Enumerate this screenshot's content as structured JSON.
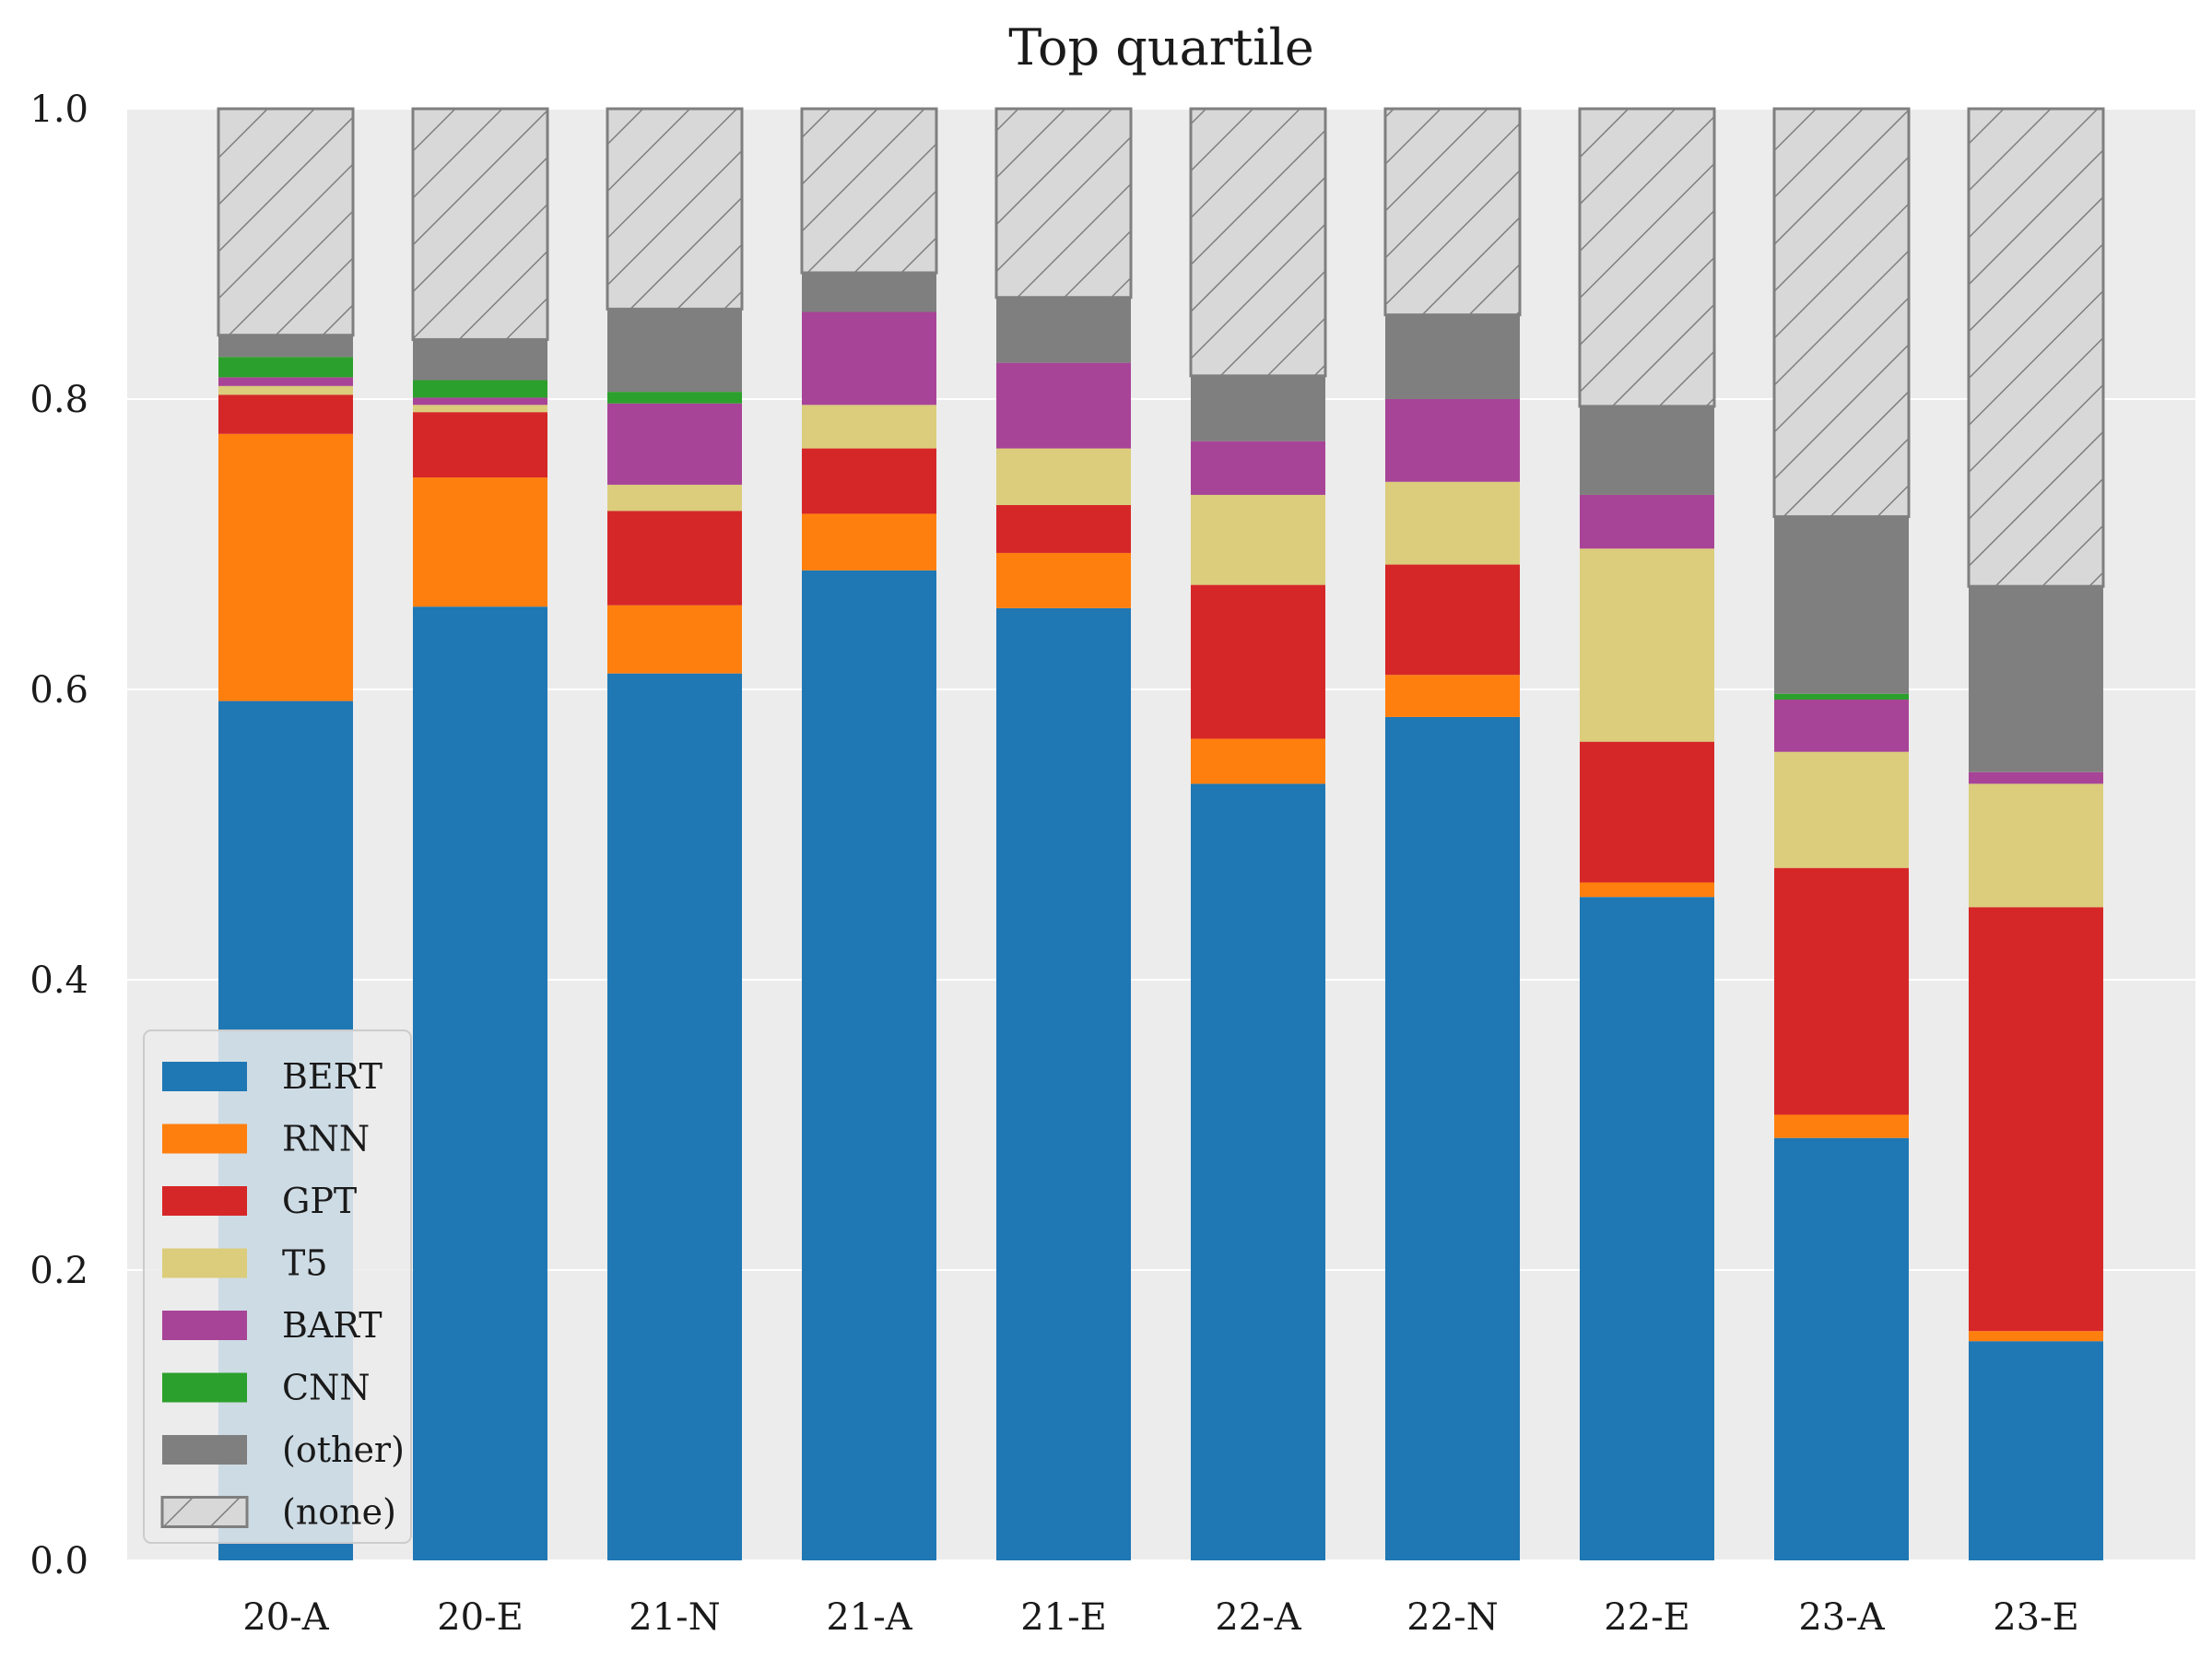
{
  "chart_data": {
    "type": "bar",
    "stacked": true,
    "title": "Top quartile",
    "xlabel": "",
    "ylabel": "",
    "ylim": [
      0,
      1.0
    ],
    "yticks": [
      "0.0",
      "0.2",
      "0.4",
      "0.6",
      "0.8",
      "1.0"
    ],
    "grid": true,
    "legend_position": "bottom-left",
    "categories": [
      "20-A",
      "20-E",
      "21-N",
      "21-A",
      "21-E",
      "22-A",
      "22-N",
      "22-E",
      "23-A",
      "23-E"
    ],
    "series": [
      {
        "name": "BERT",
        "color": "#1f77b4",
        "values": [
          0.592,
          0.657,
          0.611,
          0.682,
          0.656,
          0.535,
          0.581,
          0.457,
          0.291,
          0.151
        ]
      },
      {
        "name": "RNN",
        "color": "#ff7f0e",
        "values": [
          0.184,
          0.089,
          0.047,
          0.039,
          0.038,
          0.031,
          0.029,
          0.01,
          0.016,
          0.007
        ]
      },
      {
        "name": "GPT",
        "color": "#d62728",
        "values": [
          0.027,
          0.045,
          0.065,
          0.045,
          0.033,
          0.106,
          0.076,
          0.097,
          0.17,
          0.292
        ]
      },
      {
        "name": "T5",
        "color": "#dbcd7b",
        "values": [
          0.006,
          0.005,
          0.018,
          0.03,
          0.039,
          0.062,
          0.057,
          0.133,
          0.08,
          0.085
        ]
      },
      {
        "name": "BART",
        "color": "#a84497",
        "values": [
          0.006,
          0.005,
          0.056,
          0.064,
          0.059,
          0.037,
          0.057,
          0.037,
          0.036,
          0.008
        ]
      },
      {
        "name": "CNN",
        "color": "#2ca02c",
        "values": [
          0.014,
          0.012,
          0.008,
          0.0,
          0.0,
          0.0,
          0.0,
          0.0,
          0.004,
          0.0
        ]
      },
      {
        "name": "(other)",
        "color": "#7f7f7f",
        "values": [
          0.015,
          0.028,
          0.057,
          0.027,
          0.045,
          0.045,
          0.058,
          0.061,
          0.122,
          0.128
        ]
      },
      {
        "name": "(none)",
        "color": "#d8d8d8",
        "hatch": true,
        "values": [
          0.156,
          0.159,
          0.138,
          0.113,
          0.13,
          0.184,
          0.142,
          0.205,
          0.281,
          0.329
        ]
      }
    ]
  }
}
